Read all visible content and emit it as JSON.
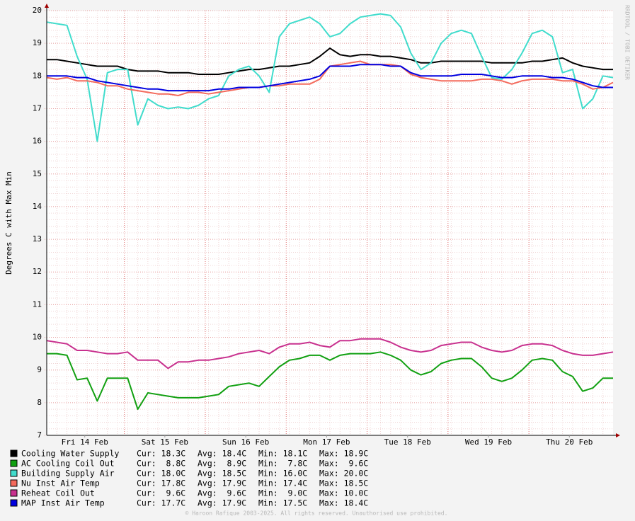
{
  "chart_data": {
    "type": "line",
    "y_label": "Degrees C with Max Min",
    "watermark": "RRDTOOL / TOBI OETIKER",
    "footer": "© Haroon Rafique 2003-2025. All rights reserved. Unauthorised use prohibited.",
    "xlim": [
      0,
      7
    ],
    "xticks": [
      {
        "value": 0.47,
        "label": "Fri 14 Feb"
      },
      {
        "value": 1.46,
        "label": "Sat 15 Feb"
      },
      {
        "value": 2.46,
        "label": "Sun 16 Feb"
      },
      {
        "value": 3.46,
        "label": "Mon 17 Feb"
      },
      {
        "value": 4.46,
        "label": "Tue 18 Feb"
      },
      {
        "value": 5.46,
        "label": "Wed 19 Feb"
      },
      {
        "value": 6.46,
        "label": "Thu 20 Feb"
      }
    ],
    "ylim": [
      7,
      20
    ],
    "yticks": [
      7,
      8,
      9,
      10,
      11,
      12,
      13,
      14,
      15,
      16,
      17,
      18,
      19,
      20
    ],
    "grid": true,
    "x": [
      0,
      0.125,
      0.25,
      0.375,
      0.5,
      0.625,
      0.75,
      0.875,
      1,
      1.125,
      1.25,
      1.375,
      1.5,
      1.625,
      1.75,
      1.875,
      2,
      2.125,
      2.25,
      2.375,
      2.5,
      2.625,
      2.75,
      2.875,
      3,
      3.125,
      3.25,
      3.375,
      3.5,
      3.625,
      3.75,
      3.875,
      4,
      4.125,
      4.25,
      4.375,
      4.5,
      4.625,
      4.75,
      4.875,
      5,
      5.125,
      5.25,
      5.375,
      5.5,
      5.625,
      5.75,
      5.875,
      6,
      6.125,
      6.25,
      6.375,
      6.5,
      6.625,
      6.75,
      6.875,
      7
    ],
    "series": [
      {
        "name": "Cooling Water Supply",
        "color": "#000000",
        "legend_stats": [
          "Cur: 18.3C",
          "Avg: 18.4C",
          "Min: 18.1C",
          "Max: 18.9C"
        ],
        "values": [
          18.5,
          18.5,
          18.45,
          18.4,
          18.35,
          18.3,
          18.3,
          18.3,
          18.2,
          18.15,
          18.15,
          18.15,
          18.1,
          18.1,
          18.1,
          18.05,
          18.05,
          18.05,
          18.1,
          18.15,
          18.2,
          18.2,
          18.25,
          18.3,
          18.3,
          18.35,
          18.4,
          18.6,
          18.85,
          18.65,
          18.6,
          18.65,
          18.65,
          18.6,
          18.6,
          18.55,
          18.5,
          18.4,
          18.4,
          18.45,
          18.45,
          18.45,
          18.45,
          18.45,
          18.4,
          18.4,
          18.4,
          18.4,
          18.45,
          18.45,
          18.5,
          18.55,
          18.4,
          18.3,
          18.25,
          18.2,
          18.2
        ]
      },
      {
        "name": "AC Cooling Coil Out",
        "color": "#11a011",
        "legend_stats": [
          "Cur:  8.8C",
          "Avg:  8.9C",
          "Min:  7.8C",
          "Max:  9.6C"
        ],
        "values": [
          9.5,
          9.5,
          9.45,
          8.7,
          8.75,
          8.05,
          8.75,
          8.75,
          8.75,
          7.8,
          8.3,
          8.25,
          8.2,
          8.15,
          8.15,
          8.15,
          8.2,
          8.25,
          8.5,
          8.55,
          8.6,
          8.5,
          8.8,
          9.1,
          9.3,
          9.35,
          9.45,
          9.45,
          9.3,
          9.45,
          9.5,
          9.5,
          9.5,
          9.55,
          9.45,
          9.3,
          9.0,
          8.85,
          8.95,
          9.2,
          9.3,
          9.35,
          9.35,
          9.1,
          8.75,
          8.65,
          8.75,
          9.0,
          9.3,
          9.35,
          9.3,
          8.95,
          8.8,
          8.35,
          8.45,
          8.75,
          8.75
        ]
      },
      {
        "name": "Building Supply Air",
        "color": "#40dccc",
        "legend_stats": [
          "Cur: 18.0C",
          "Avg: 18.5C",
          "Min: 16.0C",
          "Max: 20.0C"
        ],
        "values": [
          19.65,
          19.6,
          19.55,
          18.6,
          17.9,
          16.0,
          18.1,
          18.2,
          18.2,
          16.5,
          17.3,
          17.1,
          17.0,
          17.05,
          17.0,
          17.1,
          17.3,
          17.4,
          18.0,
          18.2,
          18.3,
          18.0,
          17.5,
          19.2,
          19.6,
          19.7,
          19.8,
          19.6,
          19.2,
          19.3,
          19.6,
          19.8,
          19.85,
          19.9,
          19.85,
          19.5,
          18.7,
          18.2,
          18.4,
          19.0,
          19.3,
          19.4,
          19.3,
          18.6,
          17.95,
          17.9,
          18.2,
          18.7,
          19.3,
          19.4,
          19.2,
          18.1,
          18.2,
          17.0,
          17.3,
          18.0,
          17.95
        ]
      },
      {
        "name": "Nu Inst Air Temp",
        "color": "#f46a5c",
        "legend_stats": [
          "Cur: 17.8C",
          "Avg: 17.9C",
          "Min: 17.4C",
          "Max: 18.5C"
        ],
        "values": [
          17.95,
          17.9,
          17.95,
          17.85,
          17.85,
          17.8,
          17.7,
          17.7,
          17.6,
          17.55,
          17.5,
          17.45,
          17.45,
          17.4,
          17.5,
          17.5,
          17.45,
          17.5,
          17.55,
          17.6,
          17.65,
          17.65,
          17.7,
          17.7,
          17.75,
          17.75,
          17.75,
          17.9,
          18.3,
          18.35,
          18.4,
          18.45,
          18.35,
          18.35,
          18.35,
          18.3,
          18.05,
          17.95,
          17.9,
          17.85,
          17.85,
          17.85,
          17.85,
          17.9,
          17.9,
          17.85,
          17.75,
          17.85,
          17.9,
          17.9,
          17.9,
          17.85,
          17.85,
          17.75,
          17.6,
          17.65,
          17.8
        ]
      },
      {
        "name": "Reheat Coil Out",
        "color": "#c8308e",
        "legend_stats": [
          "Cur:  9.6C",
          "Avg:  9.6C",
          "Min:  9.0C",
          "Max: 10.0C"
        ],
        "values": [
          9.9,
          9.85,
          9.8,
          9.6,
          9.6,
          9.55,
          9.5,
          9.5,
          9.55,
          9.3,
          9.3,
          9.3,
          9.05,
          9.25,
          9.25,
          9.3,
          9.3,
          9.35,
          9.4,
          9.5,
          9.55,
          9.6,
          9.5,
          9.7,
          9.8,
          9.8,
          9.85,
          9.75,
          9.7,
          9.9,
          9.9,
          9.95,
          9.95,
          9.95,
          9.85,
          9.7,
          9.6,
          9.55,
          9.6,
          9.75,
          9.8,
          9.85,
          9.85,
          9.7,
          9.6,
          9.55,
          9.6,
          9.75,
          9.8,
          9.8,
          9.75,
          9.6,
          9.5,
          9.45,
          9.45,
          9.5,
          9.55
        ]
      },
      {
        "name": "MAP Inst Air Temp",
        "color": "#0000e0",
        "legend_stats": [
          "Cur: 17.7C",
          "Avg: 17.9C",
          "Min: 17.5C",
          "Max: 18.4C"
        ],
        "values": [
          18.0,
          18.0,
          18.0,
          17.95,
          17.95,
          17.85,
          17.8,
          17.75,
          17.7,
          17.65,
          17.6,
          17.6,
          17.55,
          17.55,
          17.55,
          17.55,
          17.55,
          17.6,
          17.6,
          17.65,
          17.65,
          17.65,
          17.7,
          17.75,
          17.8,
          17.85,
          17.9,
          18.0,
          18.3,
          18.3,
          18.3,
          18.35,
          18.35,
          18.35,
          18.3,
          18.3,
          18.1,
          18.0,
          18.0,
          18.0,
          18.0,
          18.05,
          18.05,
          18.05,
          18.0,
          17.95,
          17.95,
          18.0,
          18.0,
          18.0,
          17.95,
          17.95,
          17.9,
          17.8,
          17.7,
          17.65,
          17.65
        ]
      }
    ]
  }
}
